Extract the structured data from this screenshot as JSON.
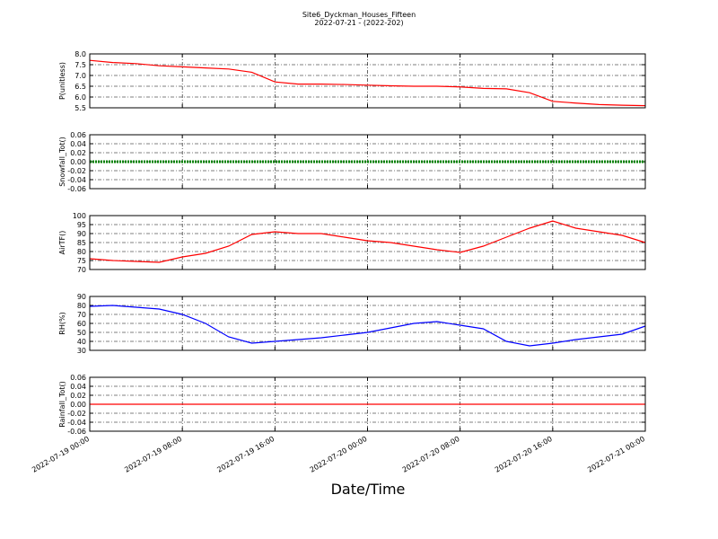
{
  "title": "Site6_Dyckman_Houses_Fifteen",
  "subtitle": "2022-07-21 - (2022-202)",
  "xlabel": "Date/Time",
  "chart_data": [
    {
      "type": "line",
      "ylabel": "P(unitless)",
      "ylim": [
        5.5,
        8.0
      ],
      "yticks": [
        5.5,
        {
          "value": 6,
          "label": "6.0"
        },
        6.5,
        {
          "value": 7,
          "label": "7.0"
        },
        7.5,
        {
          "value": 8,
          "label": "8.0"
        }
      ],
      "xlim": [
        "2022-07-19 00:00",
        "2022-07-21 00:00"
      ],
      "xticks": [
        "2022-07-19 00:00",
        "2022-07-19 08:00",
        "2022-07-19 16:00",
        "2022-07-20 00:00",
        "2022-07-20 08:00",
        "2022-07-20 16:00",
        "2022-07-21 00:00"
      ],
      "grid": true,
      "x": [
        "2022-07-19 00:00",
        "2022-07-19 02:00",
        "2022-07-19 04:00",
        "2022-07-19 06:00",
        "2022-07-19 08:00",
        "2022-07-19 10:00",
        "2022-07-19 12:00",
        "2022-07-19 14:00",
        "2022-07-19 16:00",
        "2022-07-19 18:00",
        "2022-07-19 20:00",
        "2022-07-19 22:00",
        "2022-07-20 00:00",
        "2022-07-20 02:00",
        "2022-07-20 04:00",
        "2022-07-20 06:00",
        "2022-07-20 08:00",
        "2022-07-20 10:00",
        "2022-07-20 12:00",
        "2022-07-20 14:00",
        "2022-07-20 16:00",
        "2022-07-20 18:00",
        "2022-07-20 20:00",
        "2022-07-20 22:00",
        "2022-07-21 00:00"
      ],
      "series": [
        {
          "color": "#ff0000",
          "values": [
            7.7,
            7.6,
            7.55,
            7.45,
            7.4,
            7.35,
            7.3,
            7.15,
            6.7,
            6.6,
            6.6,
            6.58,
            6.55,
            6.52,
            6.5,
            6.5,
            6.47,
            6.4,
            6.38,
            6.2,
            5.8,
            5.72,
            5.65,
            5.62,
            5.6
          ]
        }
      ]
    },
    {
      "type": "line",
      "ylabel": "Snowfall_Tot()",
      "ylim": [
        -0.06,
        0.06
      ],
      "yticks": [
        -0.06,
        -0.04,
        -0.02,
        {
          "value": 0,
          "label": "0.00"
        },
        0.02,
        0.04,
        0.06
      ],
      "xlim": [
        "2022-07-19 00:00",
        "2022-07-21 00:00"
      ],
      "xticks": [
        "2022-07-19 00:00",
        "2022-07-19 08:00",
        "2022-07-19 16:00",
        "2022-07-20 00:00",
        "2022-07-20 08:00",
        "2022-07-20 16:00",
        "2022-07-21 00:00"
      ],
      "grid": true,
      "markers": true,
      "x": [
        "2022-07-19 00:00",
        "2022-07-19 02:00",
        "2022-07-19 04:00",
        "2022-07-19 06:00",
        "2022-07-19 08:00",
        "2022-07-19 10:00",
        "2022-07-19 12:00",
        "2022-07-19 14:00",
        "2022-07-19 16:00",
        "2022-07-19 18:00",
        "2022-07-19 20:00",
        "2022-07-19 22:00",
        "2022-07-20 00:00",
        "2022-07-20 02:00",
        "2022-07-20 04:00",
        "2022-07-20 06:00",
        "2022-07-20 08:00",
        "2022-07-20 10:00",
        "2022-07-20 12:00",
        "2022-07-20 14:00",
        "2022-07-20 16:00",
        "2022-07-20 18:00",
        "2022-07-20 20:00",
        "2022-07-20 22:00",
        "2022-07-21 00:00"
      ],
      "series": [
        {
          "color": "#008000",
          "values": [
            0,
            0,
            0,
            0,
            0,
            0,
            0,
            0,
            0,
            0,
            0,
            0,
            0,
            0,
            0,
            0,
            0,
            0,
            0,
            0,
            0,
            0,
            0,
            0,
            0
          ]
        }
      ]
    },
    {
      "type": "line",
      "ylabel": "AirTF()",
      "ylim": [
        70,
        100
      ],
      "yticks": [
        70,
        75,
        80,
        85,
        90,
        95,
        100
      ],
      "xlim": [
        "2022-07-19 00:00",
        "2022-07-21 00:00"
      ],
      "xticks": [
        "2022-07-19 00:00",
        "2022-07-19 08:00",
        "2022-07-19 16:00",
        "2022-07-20 00:00",
        "2022-07-20 08:00",
        "2022-07-20 16:00",
        "2022-07-21 00:00"
      ],
      "grid": true,
      "x": [
        "2022-07-19 00:00",
        "2022-07-19 02:00",
        "2022-07-19 04:00",
        "2022-07-19 06:00",
        "2022-07-19 08:00",
        "2022-07-19 10:00",
        "2022-07-19 12:00",
        "2022-07-19 14:00",
        "2022-07-19 16:00",
        "2022-07-19 18:00",
        "2022-07-19 20:00",
        "2022-07-19 22:00",
        "2022-07-20 00:00",
        "2022-07-20 02:00",
        "2022-07-20 04:00",
        "2022-07-20 06:00",
        "2022-07-20 08:00",
        "2022-07-20 10:00",
        "2022-07-20 12:00",
        "2022-07-20 14:00",
        "2022-07-20 16:00",
        "2022-07-20 18:00",
        "2022-07-20 20:00",
        "2022-07-20 22:00",
        "2022-07-21 00:00"
      ],
      "series": [
        {
          "color": "#ff0000",
          "values": [
            76,
            75,
            74.5,
            74,
            77,
            79,
            83,
            89.5,
            91,
            90,
            90,
            88,
            86,
            85,
            83,
            81,
            79.5,
            83,
            88,
            93,
            97,
            93,
            91,
            89,
            85
          ]
        }
      ]
    },
    {
      "type": "line",
      "ylabel": "RH(%)",
      "ylim": [
        30,
        90
      ],
      "yticks": [
        30,
        40,
        50,
        60,
        70,
        80,
        90
      ],
      "xlim": [
        "2022-07-19 00:00",
        "2022-07-21 00:00"
      ],
      "xticks": [
        "2022-07-19 00:00",
        "2022-07-19 08:00",
        "2022-07-19 16:00",
        "2022-07-20 00:00",
        "2022-07-20 08:00",
        "2022-07-20 16:00",
        "2022-07-21 00:00"
      ],
      "grid": true,
      "x": [
        "2022-07-19 00:00",
        "2022-07-19 02:00",
        "2022-07-19 04:00",
        "2022-07-19 06:00",
        "2022-07-19 08:00",
        "2022-07-19 10:00",
        "2022-07-19 12:00",
        "2022-07-19 14:00",
        "2022-07-19 16:00",
        "2022-07-19 18:00",
        "2022-07-19 20:00",
        "2022-07-19 22:00",
        "2022-07-20 00:00",
        "2022-07-20 02:00",
        "2022-07-20 04:00",
        "2022-07-20 06:00",
        "2022-07-20 08:00",
        "2022-07-20 10:00",
        "2022-07-20 12:00",
        "2022-07-20 14:00",
        "2022-07-20 16:00",
        "2022-07-20 18:00",
        "2022-07-20 20:00",
        "2022-07-20 22:00",
        "2022-07-21 00:00"
      ],
      "series": [
        {
          "color": "#0000ff",
          "values": [
            79,
            80,
            78,
            76,
            70,
            60,
            45,
            38,
            40,
            42,
            44,
            47,
            50,
            55,
            60,
            62,
            58,
            54,
            40,
            35,
            38,
            42,
            45,
            48,
            57
          ]
        }
      ]
    },
    {
      "type": "line",
      "ylabel": "Rainfall_Tot()",
      "ylim": [
        -0.06,
        0.06
      ],
      "yticks": [
        -0.06,
        -0.04,
        -0.02,
        {
          "value": 0,
          "label": "0.00"
        },
        0.02,
        0.04,
        0.06
      ],
      "xlim": [
        "2022-07-19 00:00",
        "2022-07-21 00:00"
      ],
      "xticks": [
        "2022-07-19 00:00",
        "2022-07-19 08:00",
        "2022-07-19 16:00",
        "2022-07-20 00:00",
        "2022-07-20 08:00",
        "2022-07-20 16:00",
        "2022-07-21 00:00"
      ],
      "grid": true,
      "xticklabels": true,
      "x": [
        "2022-07-19 00:00",
        "2022-07-19 02:00",
        "2022-07-19 04:00",
        "2022-07-19 06:00",
        "2022-07-19 08:00",
        "2022-07-19 10:00",
        "2022-07-19 12:00",
        "2022-07-19 14:00",
        "2022-07-19 16:00",
        "2022-07-19 18:00",
        "2022-07-19 20:00",
        "2022-07-19 22:00",
        "2022-07-20 00:00",
        "2022-07-20 02:00",
        "2022-07-20 04:00",
        "2022-07-20 06:00",
        "2022-07-20 08:00",
        "2022-07-20 10:00",
        "2022-07-20 12:00",
        "2022-07-20 14:00",
        "2022-07-20 16:00",
        "2022-07-20 18:00",
        "2022-07-20 20:00",
        "2022-07-20 22:00",
        "2022-07-21 00:00"
      ],
      "series": [
        {
          "color": "#ff0000",
          "values": [
            0,
            0,
            0,
            0,
            0,
            0,
            0,
            0,
            0,
            0,
            0,
            0,
            0,
            0,
            0,
            0,
            0,
            0,
            0,
            0,
            0,
            0,
            0,
            0,
            0
          ]
        }
      ]
    }
  ]
}
